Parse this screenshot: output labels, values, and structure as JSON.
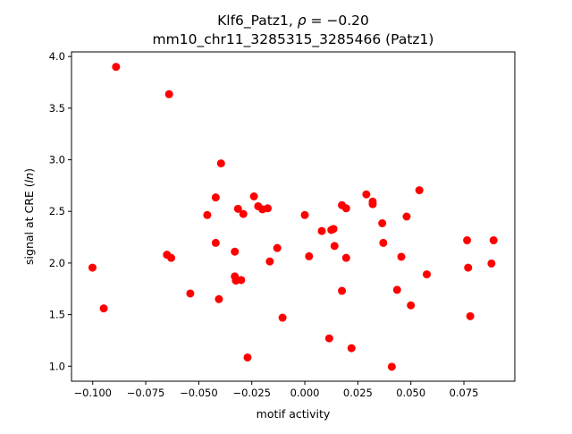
{
  "chart_data": {
    "type": "scatter",
    "title_line1": "Klf6_Patz1, ",
    "title_rho_symbol": "ρ",
    "title_rho_value": " = −0.20",
    "title_line2": "mm10_chr11_3285315_3285466 (Patz1)",
    "xlabel": "motif activity",
    "ylabel_prefix": "signal at CRE (",
    "ylabel_italic": "ln",
    "ylabel_suffix": ")",
    "xlim": [
      -0.11,
      0.099
    ],
    "ylim": [
      0.855,
      4.045
    ],
    "x_ticks": [
      -0.1,
      -0.075,
      -0.05,
      -0.025,
      0.0,
      0.025,
      0.05,
      0.075
    ],
    "x_tick_labels": [
      "−0.100",
      "−0.075",
      "−0.050",
      "−0.025",
      "0.000",
      "0.025",
      "0.050",
      "0.075"
    ],
    "y_ticks": [
      1.0,
      1.5,
      2.0,
      2.5,
      3.0,
      3.5,
      4.0
    ],
    "y_tick_labels": [
      "1.0",
      "1.5",
      "2.0",
      "2.5",
      "3.0",
      "3.5",
      "4.0"
    ],
    "grid": false,
    "marker_color": "#ff0000",
    "points": [
      {
        "x": -0.1001,
        "y": 1.955
      },
      {
        "x": -0.0948,
        "y": 1.56
      },
      {
        "x": -0.089,
        "y": 3.9
      },
      {
        "x": -0.065,
        "y": 2.08
      },
      {
        "x": -0.064,
        "y": 3.635
      },
      {
        "x": -0.063,
        "y": 2.05
      },
      {
        "x": -0.054,
        "y": 1.705
      },
      {
        "x": -0.046,
        "y": 2.465
      },
      {
        "x": -0.042,
        "y": 2.635
      },
      {
        "x": -0.042,
        "y": 2.195
      },
      {
        "x": -0.0405,
        "y": 1.65
      },
      {
        "x": -0.0395,
        "y": 2.965
      },
      {
        "x": -0.033,
        "y": 2.11
      },
      {
        "x": -0.033,
        "y": 1.87
      },
      {
        "x": -0.0325,
        "y": 1.83
      },
      {
        "x": -0.0315,
        "y": 2.525
      },
      {
        "x": -0.03,
        "y": 1.835
      },
      {
        "x": -0.029,
        "y": 2.475
      },
      {
        "x": -0.027,
        "y": 1.085
      },
      {
        "x": -0.024,
        "y": 2.645
      },
      {
        "x": -0.022,
        "y": 2.55
      },
      {
        "x": -0.02,
        "y": 2.52
      },
      {
        "x": -0.0175,
        "y": 2.53
      },
      {
        "x": -0.0165,
        "y": 2.015
      },
      {
        "x": -0.013,
        "y": 2.145
      },
      {
        "x": -0.0105,
        "y": 1.47
      },
      {
        "x": 0.0,
        "y": 2.465
      },
      {
        "x": 0.002,
        "y": 2.065
      },
      {
        "x": 0.008,
        "y": 2.31
      },
      {
        "x": 0.0115,
        "y": 1.27
      },
      {
        "x": 0.0125,
        "y": 2.32
      },
      {
        "x": 0.0135,
        "y": 2.33
      },
      {
        "x": 0.014,
        "y": 2.165
      },
      {
        "x": 0.0175,
        "y": 2.56
      },
      {
        "x": 0.0175,
        "y": 1.73
      },
      {
        "x": 0.0195,
        "y": 2.53
      },
      {
        "x": 0.0195,
        "y": 2.05
      },
      {
        "x": 0.022,
        "y": 1.175
      },
      {
        "x": 0.029,
        "y": 2.665
      },
      {
        "x": 0.032,
        "y": 2.595
      },
      {
        "x": 0.032,
        "y": 2.57
      },
      {
        "x": 0.0365,
        "y": 2.385
      },
      {
        "x": 0.037,
        "y": 2.195
      },
      {
        "x": 0.041,
        "y": 0.995
      },
      {
        "x": 0.0435,
        "y": 1.74
      },
      {
        "x": 0.0455,
        "y": 2.06
      },
      {
        "x": 0.048,
        "y": 2.45
      },
      {
        "x": 0.05,
        "y": 1.59
      },
      {
        "x": 0.054,
        "y": 2.705
      },
      {
        "x": 0.0575,
        "y": 1.89
      },
      {
        "x": 0.0765,
        "y": 2.22
      },
      {
        "x": 0.077,
        "y": 1.955
      },
      {
        "x": 0.078,
        "y": 1.485
      },
      {
        "x": 0.088,
        "y": 1.995
      },
      {
        "x": 0.089,
        "y": 2.22
      }
    ]
  }
}
